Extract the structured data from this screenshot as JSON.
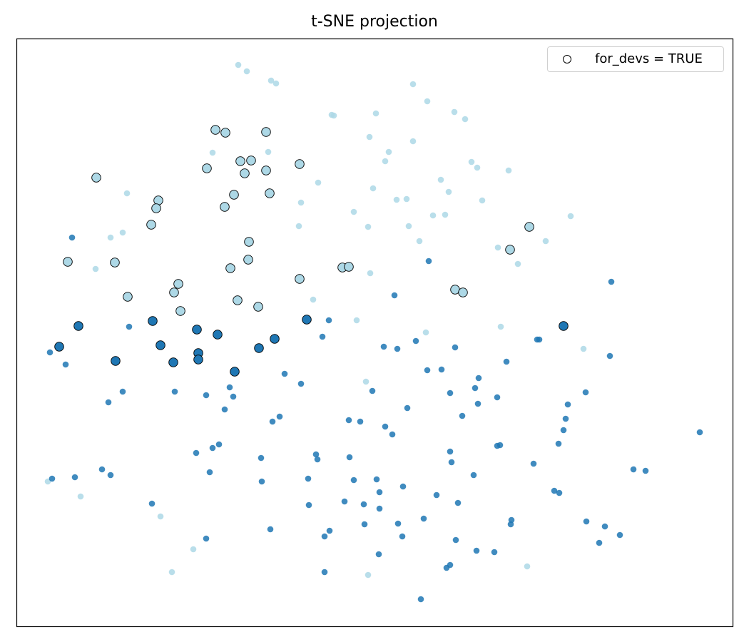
{
  "chart_data": {
    "type": "scatter",
    "title": "t-SNE projection",
    "xlabel": "",
    "ylabel": "",
    "xlim": [
      0,
      100.4
    ],
    "ylim": [
      0,
      82.4
    ],
    "ticks": false,
    "grid": false,
    "legend": {
      "position": "top-right",
      "entries": [
        "for_devs = TRUE"
      ]
    },
    "colors": {
      "light": "#add8e6",
      "dark": "#1f77b4",
      "highlight_edge": "#000000"
    },
    "groups": [
      {
        "color": "light",
        "for_devs": false,
        "points": [
          [
            31.1,
            78.7
          ],
          [
            32.3,
            77.8
          ],
          [
            35.7,
            76.5
          ],
          [
            36.4,
            76.1
          ],
          [
            55.6,
            76.0
          ],
          [
            57.6,
            73.6
          ],
          [
            61.4,
            72.1
          ],
          [
            62.9,
            71.1
          ],
          [
            44.2,
            71.7
          ],
          [
            44.5,
            71.6
          ],
          [
            50.4,
            71.9
          ],
          [
            49.5,
            68.6
          ],
          [
            55.6,
            68.0
          ],
          [
            52.2,
            66.5
          ],
          [
            51.7,
            65.2
          ],
          [
            27.5,
            66.4
          ],
          [
            35.3,
            66.5
          ],
          [
            63.8,
            65.1
          ],
          [
            64.6,
            64.3
          ],
          [
            69.0,
            63.9
          ],
          [
            59.5,
            62.6
          ],
          [
            42.3,
            62.2
          ],
          [
            15.5,
            60.7
          ],
          [
            50.0,
            61.4
          ],
          [
            60.6,
            60.9
          ],
          [
            53.3,
            59.8
          ],
          [
            54.7,
            59.9
          ],
          [
            65.3,
            59.7
          ],
          [
            39.9,
            59.4
          ],
          [
            47.3,
            58.1
          ],
          [
            58.4,
            57.6
          ],
          [
            60.1,
            57.7
          ],
          [
            77.7,
            57.5
          ],
          [
            39.6,
            56.1
          ],
          [
            49.3,
            56.0
          ],
          [
            55.0,
            56.1
          ],
          [
            14.9,
            55.2
          ],
          [
            13.2,
            54.5
          ],
          [
            56.5,
            54.0
          ],
          [
            74.2,
            54.0
          ],
          [
            67.5,
            53.1
          ],
          [
            70.3,
            50.8
          ],
          [
            11.1,
            50.1
          ],
          [
            49.6,
            49.5
          ],
          [
            41.6,
            45.8
          ],
          [
            47.7,
            42.9
          ],
          [
            67.9,
            42.0
          ],
          [
            57.4,
            41.2
          ],
          [
            79.5,
            38.9
          ],
          [
            49.0,
            34.3
          ],
          [
            4.4,
            20.3
          ],
          [
            9.0,
            18.2
          ],
          [
            20.2,
            15.4
          ],
          [
            24.8,
            10.8
          ],
          [
            21.8,
            7.6
          ],
          [
            49.3,
            7.2
          ],
          [
            71.6,
            8.4
          ]
        ]
      },
      {
        "color": "dark",
        "for_devs": false,
        "points": [
          [
            7.8,
            54.5
          ],
          [
            57.8,
            51.2
          ],
          [
            53.0,
            46.4
          ],
          [
            83.4,
            48.3
          ],
          [
            43.8,
            42.9
          ],
          [
            15.8,
            42.0
          ],
          [
            42.9,
            40.6
          ],
          [
            51.5,
            39.2
          ],
          [
            53.4,
            38.9
          ],
          [
            56.0,
            40.0
          ],
          [
            61.5,
            39.1
          ],
          [
            73.0,
            40.2
          ],
          [
            73.3,
            40.2
          ],
          [
            83.2,
            37.9
          ],
          [
            4.7,
            38.4
          ],
          [
            6.9,
            36.7
          ],
          [
            68.7,
            37.1
          ],
          [
            57.6,
            35.9
          ],
          [
            59.6,
            36.0
          ],
          [
            37.6,
            35.4
          ],
          [
            64.8,
            34.8
          ],
          [
            39.9,
            34.0
          ],
          [
            29.9,
            33.5
          ],
          [
            49.9,
            33.0
          ],
          [
            60.8,
            32.7
          ],
          [
            64.3,
            33.4
          ],
          [
            14.9,
            32.9
          ],
          [
            22.2,
            32.9
          ],
          [
            26.6,
            32.4
          ],
          [
            30.4,
            32.2
          ],
          [
            67.4,
            32.1
          ],
          [
            79.8,
            32.8
          ],
          [
            12.9,
            31.4
          ],
          [
            54.8,
            30.6
          ],
          [
            64.7,
            31.2
          ],
          [
            77.3,
            31.1
          ],
          [
            29.2,
            30.4
          ],
          [
            36.9,
            29.4
          ],
          [
            35.9,
            28.7
          ],
          [
            62.5,
            29.5
          ],
          [
            46.6,
            28.9
          ],
          [
            48.2,
            28.7
          ],
          [
            77.0,
            29.1
          ],
          [
            51.7,
            28.0
          ],
          [
            52.7,
            26.9
          ],
          [
            76.7,
            27.5
          ],
          [
            95.8,
            27.2
          ],
          [
            67.4,
            25.3
          ],
          [
            67.8,
            25.4
          ],
          [
            76.0,
            25.6
          ],
          [
            28.4,
            25.5
          ],
          [
            27.5,
            25.0
          ],
          [
            25.2,
            24.3
          ],
          [
            42.0,
            24.1
          ],
          [
            42.2,
            23.4
          ],
          [
            46.7,
            23.7
          ],
          [
            34.3,
            23.6
          ],
          [
            60.8,
            24.5
          ],
          [
            61.0,
            23.0
          ],
          [
            72.5,
            22.8
          ],
          [
            12.0,
            22.0
          ],
          [
            13.2,
            21.2
          ],
          [
            8.2,
            20.9
          ],
          [
            5.0,
            20.7
          ],
          [
            27.1,
            21.6
          ],
          [
            64.1,
            21.2
          ],
          [
            86.5,
            22.0
          ],
          [
            88.2,
            21.8
          ],
          [
            40.9,
            20.7
          ],
          [
            34.4,
            20.3
          ],
          [
            47.3,
            20.5
          ],
          [
            50.5,
            20.6
          ],
          [
            54.2,
            19.6
          ],
          [
            50.9,
            18.8
          ],
          [
            58.9,
            18.4
          ],
          [
            75.4,
            19.0
          ],
          [
            76.1,
            18.7
          ],
          [
            19.0,
            17.2
          ],
          [
            41.0,
            17.0
          ],
          [
            46.0,
            17.5
          ],
          [
            48.7,
            17.1
          ],
          [
            50.9,
            16.5
          ],
          [
            61.9,
            17.3
          ],
          [
            69.4,
            14.9
          ],
          [
            69.3,
            14.3
          ],
          [
            57.1,
            15.1
          ],
          [
            48.8,
            14.3
          ],
          [
            53.5,
            14.4
          ],
          [
            79.9,
            14.7
          ],
          [
            82.5,
            14.0
          ],
          [
            35.6,
            13.6
          ],
          [
            43.9,
            13.4
          ],
          [
            43.2,
            12.6
          ],
          [
            54.1,
            12.6
          ],
          [
            84.6,
            12.8
          ],
          [
            26.6,
            12.3
          ],
          [
            61.6,
            12.1
          ],
          [
            81.7,
            11.7
          ],
          [
            64.5,
            10.6
          ],
          [
            67.0,
            10.4
          ],
          [
            50.8,
            10.1
          ],
          [
            60.8,
            8.6
          ],
          [
            60.3,
            8.2
          ],
          [
            43.2,
            7.6
          ],
          [
            56.7,
            3.8
          ]
        ]
      },
      {
        "color": "light",
        "for_devs": true,
        "points": [
          [
            27.9,
            69.6
          ],
          [
            29.3,
            69.2
          ],
          [
            35.0,
            69.3
          ],
          [
            11.2,
            62.9
          ],
          [
            26.7,
            64.2
          ],
          [
            31.4,
            65.2
          ],
          [
            32.9,
            65.3
          ],
          [
            32.0,
            63.5
          ],
          [
            35.0,
            63.9
          ],
          [
            39.7,
            64.8
          ],
          [
            19.9,
            59.7
          ],
          [
            19.6,
            58.6
          ],
          [
            30.5,
            60.5
          ],
          [
            35.5,
            60.7
          ],
          [
            29.2,
            58.8
          ],
          [
            18.9,
            56.3
          ],
          [
            32.6,
            53.9
          ],
          [
            7.2,
            51.1
          ],
          [
            13.8,
            51.0
          ],
          [
            32.5,
            51.4
          ],
          [
            30.0,
            50.2
          ],
          [
            71.9,
            56.0
          ],
          [
            69.2,
            52.8
          ],
          [
            45.7,
            50.3
          ],
          [
            46.6,
            50.4
          ],
          [
            39.7,
            48.7
          ],
          [
            22.7,
            48.0
          ],
          [
            15.6,
            46.2
          ],
          [
            22.1,
            46.8
          ],
          [
            31.0,
            45.7
          ],
          [
            33.9,
            44.8
          ],
          [
            23.0,
            44.2
          ],
          [
            61.5,
            47.2
          ],
          [
            62.6,
            46.8
          ]
        ]
      },
      {
        "color": "dark",
        "for_devs": true,
        "points": [
          [
            8.7,
            42.1
          ],
          [
            6.0,
            39.2
          ],
          [
            19.1,
            42.8
          ],
          [
            25.3,
            41.6
          ],
          [
            28.2,
            40.9
          ],
          [
            20.2,
            39.4
          ],
          [
            13.9,
            37.2
          ],
          [
            22.0,
            37.0
          ],
          [
            25.5,
            38.3
          ],
          [
            25.5,
            37.4
          ],
          [
            30.6,
            35.7
          ],
          [
            34.0,
            39.0
          ],
          [
            36.2,
            40.3
          ],
          [
            40.7,
            43.0
          ],
          [
            76.7,
            42.1
          ]
        ]
      }
    ]
  }
}
